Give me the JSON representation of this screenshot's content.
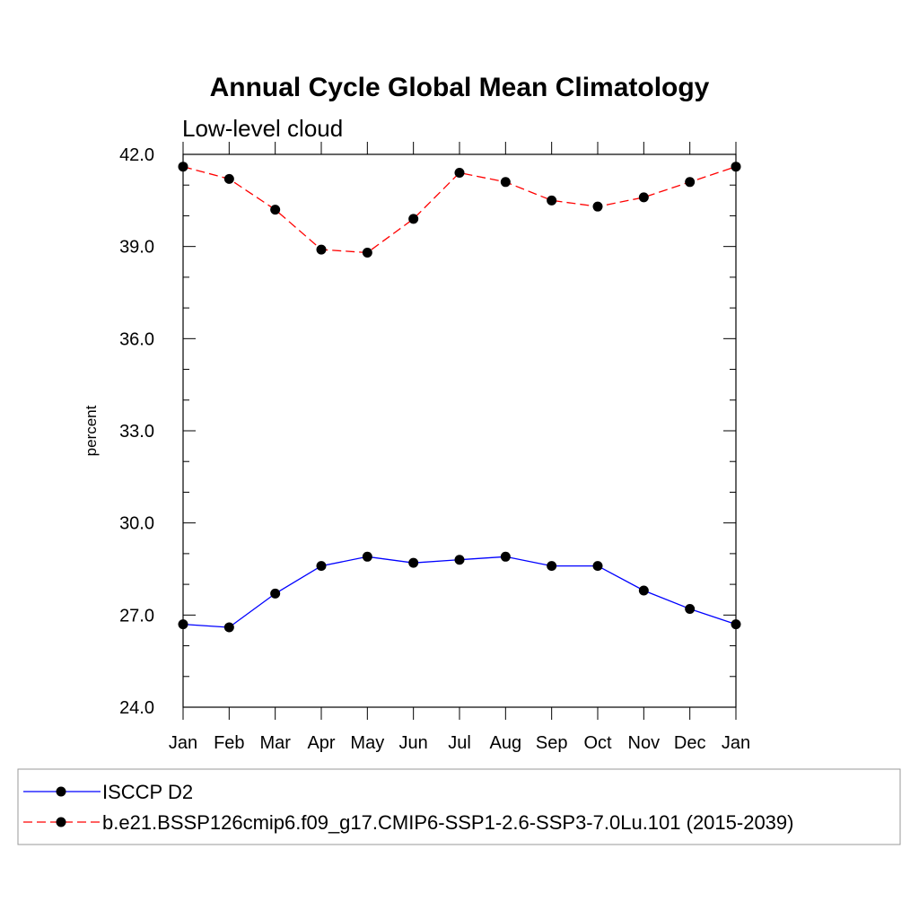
{
  "chart_data": {
    "type": "line",
    "title": "Annual Cycle Global Mean Climatology",
    "subtitle": "Low-level cloud",
    "xlabel": "",
    "ylabel": "percent",
    "categories": [
      "Jan",
      "Feb",
      "Mar",
      "Apr",
      "May",
      "Jun",
      "Jul",
      "Aug",
      "Sep",
      "Oct",
      "Nov",
      "Dec",
      "Jan"
    ],
    "ylim": [
      24.0,
      42.0
    ],
    "yticks": [
      "24.0",
      "27.0",
      "30.0",
      "33.0",
      "36.0",
      "39.0",
      "42.0"
    ],
    "grid": false,
    "legend_position": "bottom",
    "series": [
      {
        "name": "ISCCP D2",
        "color": "#0000ff",
        "line_style": "solid",
        "marker": "filled-circle",
        "values": [
          26.7,
          26.6,
          27.7,
          28.6,
          28.9,
          28.7,
          28.8,
          28.9,
          28.6,
          28.6,
          27.8,
          27.2,
          26.7
        ]
      },
      {
        "name": "b.e21.BSSP126cmip6.f09_g17.CMIP6-SSP1-2.6-SSP3-7.0Lu.101 (2015-2039)",
        "color": "#ff0000",
        "line_style": "dashed",
        "marker": "filled-circle",
        "values": [
          41.6,
          41.2,
          40.2,
          38.9,
          38.8,
          39.9,
          41.4,
          41.1,
          40.5,
          40.3,
          40.6,
          41.1,
          41.6
        ]
      }
    ]
  }
}
